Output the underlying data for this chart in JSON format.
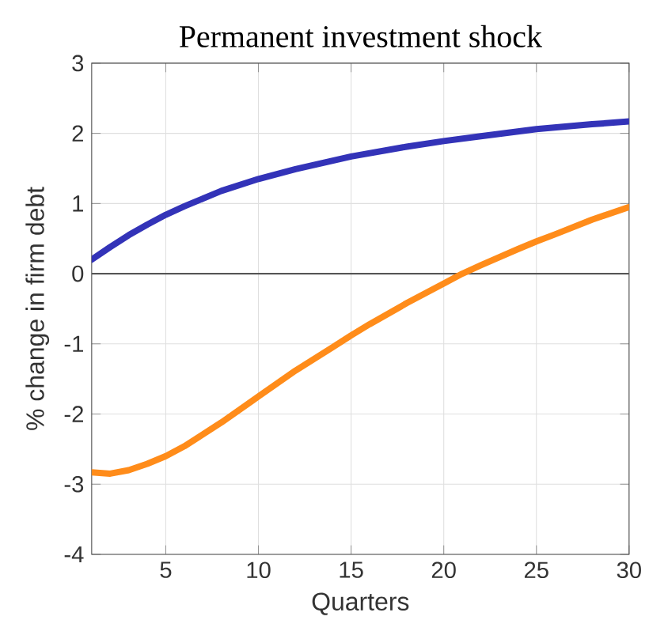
{
  "chart_data": {
    "type": "line",
    "title": "Permanent investment shock",
    "xlabel": "Quarters",
    "ylabel": "% change in firm debt",
    "xlim": [
      1,
      30
    ],
    "ylim": [
      -4,
      3
    ],
    "xticks": [
      5,
      10,
      15,
      20,
      25,
      30
    ],
    "yticks": [
      -4,
      -3,
      -2,
      -1,
      0,
      1,
      2,
      3
    ],
    "grid": true,
    "line_style": "solid",
    "series": [
      {
        "color": "#3333b8",
        "x": [
          1,
          2,
          3,
          4,
          5,
          6,
          8,
          10,
          12,
          15,
          18,
          20,
          22,
          25,
          28,
          30
        ],
        "values": [
          0.2,
          0.38,
          0.55,
          0.7,
          0.84,
          0.96,
          1.18,
          1.35,
          1.49,
          1.67,
          1.81,
          1.89,
          1.96,
          2.06,
          2.13,
          2.17
        ]
      },
      {
        "color": "#ff8c1a",
        "x": [
          1,
          2,
          3,
          4,
          5,
          6,
          8,
          10,
          12,
          14,
          15,
          16,
          18,
          20,
          21,
          22,
          24,
          25,
          26,
          28,
          30
        ],
        "values": [
          -2.83,
          -2.85,
          -2.8,
          -2.71,
          -2.6,
          -2.46,
          -2.12,
          -1.75,
          -1.38,
          -1.05,
          -0.88,
          -0.72,
          -0.42,
          -0.14,
          0.0,
          0.12,
          0.35,
          0.46,
          0.56,
          0.77,
          0.95
        ]
      }
    ],
    "ref_lines": [
      {
        "axis": "y",
        "value": 0,
        "color": "#555555"
      }
    ]
  }
}
